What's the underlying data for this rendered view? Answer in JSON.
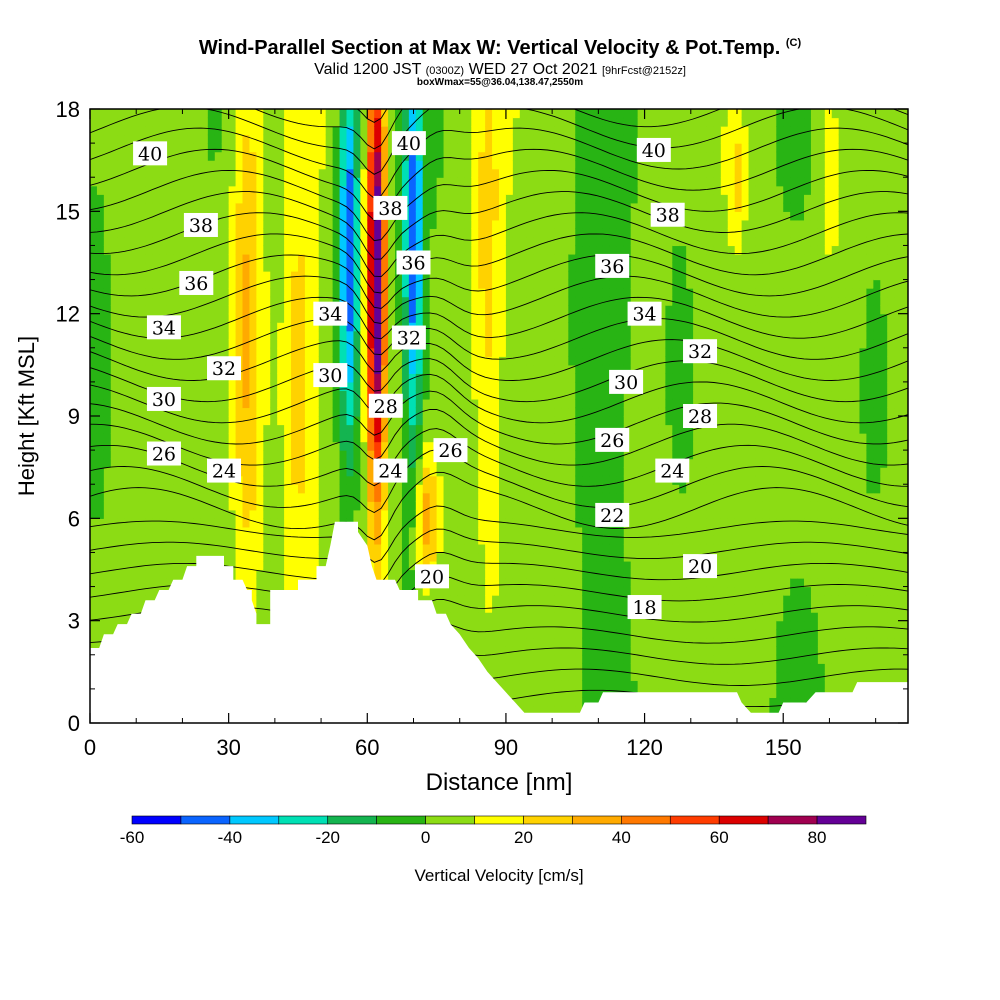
{
  "header": {
    "title": "Wind-Parallel Section at Max W: Vertical Velocity & Pot.Temp.",
    "copyright": "(C)",
    "valid_prefix": "Valid 1200 JST",
    "valid_utc": "(0300Z)",
    "valid_date": "WED 27 Oct 2021",
    "forecast": "[9hrFcst@2152z]",
    "box_info": "boxWmax=55@36.04,138.47,2550m"
  },
  "chart_data": {
    "type": "heatmap",
    "title": "Wind-Parallel Section at Max W: Vertical Velocity & Pot.Temp.",
    "xlabel": "Distance [nm]",
    "ylabel": "Height [Kft MSL]",
    "xlim": [
      0,
      177
    ],
    "ylim": [
      0,
      18
    ],
    "x_ticks": [
      0,
      30,
      60,
      90,
      120,
      150
    ],
    "y_ticks": [
      0,
      3,
      6,
      9,
      12,
      15,
      18
    ],
    "colorbar": {
      "label": "Vertical Velocity [cm/s]",
      "tick_labels": [
        -60,
        -40,
        -20,
        0,
        20,
        40,
        60,
        80
      ],
      "bounds": [
        -60,
        -50,
        -40,
        -30,
        -20,
        -10,
        0,
        10,
        20,
        30,
        40,
        50,
        60,
        70,
        80,
        90
      ],
      "colors": [
        "#0000ff",
        "#0a64ff",
        "#00c8ff",
        "#00e0b4",
        "#14b450",
        "#28b414",
        "#8cdc14",
        "#ffff00",
        "#ffd200",
        "#ffaa00",
        "#ff7800",
        "#ff3c00",
        "#dc0000",
        "#a00050",
        "#640096"
      ]
    },
    "pot_temp_labels": [
      {
        "value": "40",
        "x": 13,
        "y": 16.7
      },
      {
        "value": "38",
        "x": 24,
        "y": 14.6
      },
      {
        "value": "36",
        "x": 23,
        "y": 12.9
      },
      {
        "value": "34",
        "x": 16,
        "y": 11.6
      },
      {
        "value": "32",
        "x": 29,
        "y": 10.4
      },
      {
        "value": "30",
        "x": 16,
        "y": 9.5
      },
      {
        "value": "26",
        "x": 16,
        "y": 7.9
      },
      {
        "value": "24",
        "x": 29,
        "y": 7.4
      },
      {
        "value": "34",
        "x": 52,
        "y": 12.0
      },
      {
        "value": "30",
        "x": 52,
        "y": 10.2
      },
      {
        "value": "40",
        "x": 69,
        "y": 17.0
      },
      {
        "value": "38",
        "x": 65,
        "y": 15.1
      },
      {
        "value": "36",
        "x": 70,
        "y": 13.5
      },
      {
        "value": "32",
        "x": 69,
        "y": 11.3
      },
      {
        "value": "28",
        "x": 64,
        "y": 9.3
      },
      {
        "value": "24",
        "x": 65,
        "y": 7.4
      },
      {
        "value": "26",
        "x": 78,
        "y": 8.0
      },
      {
        "value": "20",
        "x": 74,
        "y": 4.3
      },
      {
        "value": "40",
        "x": 122,
        "y": 16.8
      },
      {
        "value": "38",
        "x": 125,
        "y": 14.9
      },
      {
        "value": "36",
        "x": 113,
        "y": 13.4
      },
      {
        "value": "34",
        "x": 120,
        "y": 12.0
      },
      {
        "value": "32",
        "x": 132,
        "y": 10.9
      },
      {
        "value": "30",
        "x": 116,
        "y": 10.0
      },
      {
        "value": "28",
        "x": 132,
        "y": 9.0
      },
      {
        "value": "26",
        "x": 113,
        "y": 8.3
      },
      {
        "value": "24",
        "x": 126,
        "y": 7.4
      },
      {
        "value": "22",
        "x": 113,
        "y": 6.1
      },
      {
        "value": "20",
        "x": 132,
        "y": 4.6
      },
      {
        "value": "18",
        "x": 120,
        "y": 3.4
      }
    ],
    "terrain": [
      [
        0,
        2.2
      ],
      [
        2,
        2.2
      ],
      [
        3,
        2.6
      ],
      [
        5,
        2.6
      ],
      [
        6,
        2.9
      ],
      [
        8,
        2.9
      ],
      [
        9,
        3.2
      ],
      [
        11,
        3.2
      ],
      [
        12,
        3.6
      ],
      [
        14,
        3.6
      ],
      [
        15,
        3.9
      ],
      [
        17,
        3.9
      ],
      [
        18,
        4.2
      ],
      [
        20,
        4.2
      ],
      [
        21,
        4.6
      ],
      [
        23,
        4.6
      ],
      [
        23,
        4.9
      ],
      [
        29,
        4.9
      ],
      [
        29,
        4.6
      ],
      [
        31,
        4.6
      ],
      [
        31,
        4.2
      ],
      [
        33,
        4.2
      ],
      [
        34,
        3.9
      ],
      [
        35,
        3.9
      ],
      [
        35,
        3.6
      ],
      [
        36,
        3.2
      ],
      [
        36,
        2.9
      ],
      [
        39,
        2.9
      ],
      [
        39,
        3.9
      ],
      [
        45,
        3.9
      ],
      [
        45,
        4.2
      ],
      [
        49,
        4.2
      ],
      [
        49,
        4.6
      ],
      [
        51,
        4.6
      ],
      [
        52,
        5.2
      ],
      [
        53,
        5.9
      ],
      [
        58,
        5.9
      ],
      [
        58,
        5.6
      ],
      [
        60,
        5.2
      ],
      [
        61,
        4.6
      ],
      [
        62,
        4.2
      ],
      [
        66,
        4.2
      ],
      [
        67,
        3.9
      ],
      [
        71,
        3.9
      ],
      [
        71,
        3.6
      ],
      [
        74,
        3.6
      ],
      [
        75,
        3.2
      ],
      [
        77,
        3.2
      ],
      [
        78,
        2.9
      ],
      [
        80,
        2.6
      ],
      [
        82,
        2.2
      ],
      [
        84,
        1.9
      ],
      [
        86,
        1.5
      ],
      [
        88,
        1.2
      ],
      [
        90,
        0.9
      ],
      [
        92,
        0.6
      ],
      [
        94,
        0.3
      ],
      [
        106,
        0.3
      ],
      [
        107,
        0.6
      ],
      [
        110,
        0.6
      ],
      [
        111,
        0.9
      ],
      [
        140,
        0.9
      ],
      [
        141,
        0.6
      ],
      [
        143,
        0.3
      ],
      [
        149,
        0.3
      ],
      [
        150,
        0.6
      ],
      [
        155,
        0.6
      ],
      [
        157,
        0.9
      ],
      [
        165,
        0.9
      ],
      [
        166,
        1.2
      ],
      [
        177,
        1.2
      ]
    ]
  }
}
